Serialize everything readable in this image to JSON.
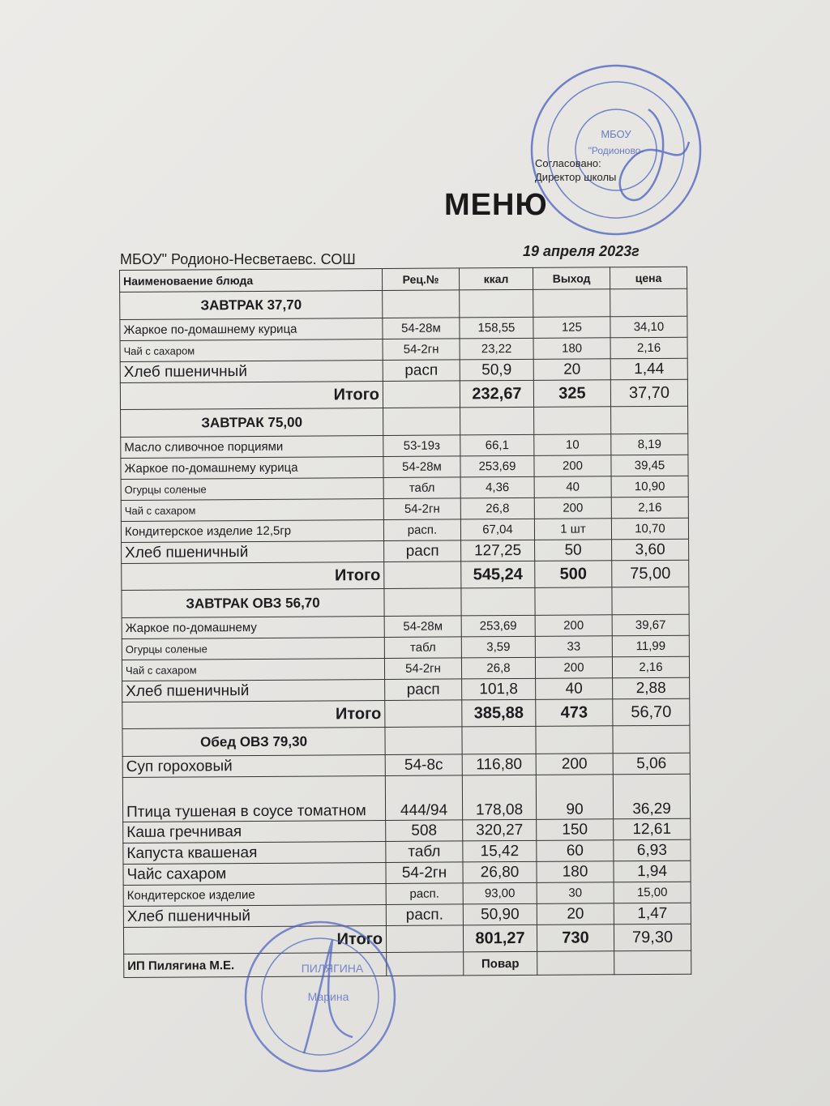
{
  "approval": {
    "line1": "Согласовано:",
    "line2": "Директор школы"
  },
  "title": "МЕНЮ",
  "organization": "МБОУ\" Родионо-Несветаевс. СОШ",
  "date": "19 апреля 2023г",
  "columns": [
    "Наименоваение блюда",
    "Рец.№",
    "ккал",
    "Выход",
    "цена"
  ],
  "rows": [
    {
      "type": "section",
      "name": "ЗАВТРАК 37,70"
    },
    {
      "type": "item",
      "name": "Жаркое по-домашнему курица",
      "rec": "54-28м",
      "kcal": "158,55",
      "out": "125",
      "price": "34,10"
    },
    {
      "type": "item",
      "name": "Чай с сахаром",
      "rec": "54-2гн",
      "kcal": "23,22",
      "out": "180",
      "price": "2,16",
      "small": true
    },
    {
      "type": "item",
      "name": "Хлеб пшеничный",
      "rec": "расп",
      "kcal": "50,9",
      "out": "20",
      "price": "1,44",
      "big": true
    },
    {
      "type": "total",
      "name": "Итого",
      "kcal": "232,67",
      "out": "325",
      "price": "37,70"
    },
    {
      "type": "section",
      "name": "ЗАВТРАК 75,00"
    },
    {
      "type": "item",
      "name": "Масло сливочное порциями",
      "rec": "53-19з",
      "kcal": "66,1",
      "out": "10",
      "price": "8,19"
    },
    {
      "type": "item",
      "name": "Жаркое по-домашнему курица",
      "rec": "54-28м",
      "kcal": "253,69",
      "out": "200",
      "price": "39,45"
    },
    {
      "type": "item",
      "name": "Огурцы соленые",
      "rec": "табл",
      "kcal": "4,36",
      "out": "40",
      "price": "10,90",
      "small": true
    },
    {
      "type": "item",
      "name": "Чай с сахаром",
      "rec": "54-2гн",
      "kcal": "26,8",
      "out": "200",
      "price": "2,16",
      "small": true
    },
    {
      "type": "item",
      "name": "Кондитерское изделие    12,5гр",
      "rec": "расп.",
      "kcal": "67,04",
      "out": "1 шт",
      "price": "10,70"
    },
    {
      "type": "item",
      "name": "Хлеб пшеничный",
      "rec": "расп",
      "kcal": "127,25",
      "out": "50",
      "price": "3,60",
      "big": true
    },
    {
      "type": "total",
      "name": "Итого",
      "kcal": "545,24",
      "out": "500",
      "price": "75,00"
    },
    {
      "type": "section",
      "name": "ЗАВТРАК ОВЗ 56,70"
    },
    {
      "type": "item",
      "name": "Жаркое по-домашнему",
      "rec": "54-28м",
      "kcal": "253,69",
      "out": "200",
      "price": "39,67"
    },
    {
      "type": "item",
      "name": "Огурцы соленые",
      "rec": "табл",
      "kcal": "3,59",
      "out": "33",
      "price": "11,99",
      "small": true
    },
    {
      "type": "item",
      "name": "Чай с сахаром",
      "rec": "54-2гн",
      "kcal": "26,8",
      "out": "200",
      "price": "2,16",
      "small": true
    },
    {
      "type": "item",
      "name": "Хлеб пшеничный",
      "rec": "расп",
      "kcal": "101,8",
      "out": "40",
      "price": "2,88",
      "big": true
    },
    {
      "type": "total",
      "name": "Итого",
      "kcal": "385,88",
      "out": "473",
      "price": "56,70"
    },
    {
      "type": "section",
      "name": "Обед ОВЗ 79,30"
    },
    {
      "type": "item",
      "name": "Суп гороховый",
      "rec": "54-8с",
      "kcal": "116,80",
      "out": "200",
      "price": "5,06",
      "big": true
    },
    {
      "type": "item",
      "name": "Птица тушеная в соусе томатном",
      "rec": "444/94",
      "kcal": "178,08",
      "out": "90",
      "price": "36,29",
      "tall": true
    },
    {
      "type": "item",
      "name": "Каша гречнивая",
      "rec": "508",
      "kcal": "320,27",
      "out": "150",
      "price": "12,61",
      "big": true
    },
    {
      "type": "item",
      "name": "Капуста квашеная",
      "rec": "табл",
      "kcal": "15,42",
      "out": "60",
      "price": "6,93",
      "big": true
    },
    {
      "type": "item",
      "name": "Чайс сахаром",
      "rec": "54-2гн",
      "kcal": "26,80",
      "out": "180",
      "price": "1,94",
      "big": true
    },
    {
      "type": "item",
      "name": "Кондитерское изделие",
      "rec": "расп.",
      "kcal": "93,00",
      "out": "30",
      "price": "15,00"
    },
    {
      "type": "item",
      "name": "Хлеб пшеничный",
      "rec": "расп.",
      "kcal": "50,90",
      "out": "20",
      "price": "1,47",
      "big": true
    },
    {
      "type": "total",
      "name": "Итого",
      "kcal": "801,27",
      "out": "730",
      "price": "79,30"
    }
  ],
  "footer": {
    "supplier": "ИП Пилягина М.Е.",
    "role": "Повар"
  },
  "stamps": {
    "top": "МБОУ \"Родионово-Несветайская СОШ №7\" ИНН 6130002...",
    "bottom": "ПИЛЯГИНА Марина Евгеньевна ИНН 615105186570 ОГРН 322619600178500",
    "color": "#4a5fc0"
  }
}
